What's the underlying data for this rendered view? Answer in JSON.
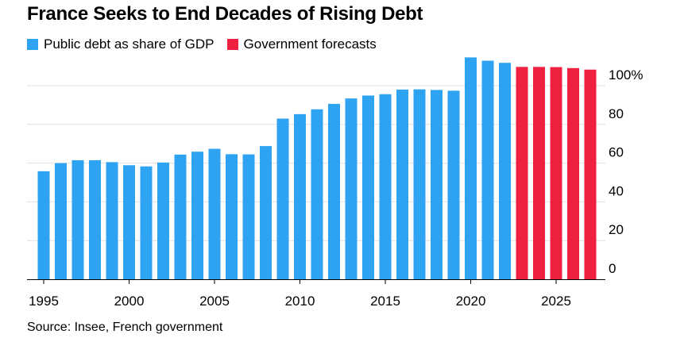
{
  "title": "France Seeks to End Decades of Rising Debt",
  "legend": [
    {
      "label": "Public debt as share of GDP",
      "color": "#2ea3f2"
    },
    {
      "label": "Government forecasts",
      "color": "#ee2240"
    }
  ],
  "source": "Source: Insee, French government",
  "chart_data": {
    "type": "bar",
    "title": "France Seeks to End Decades of Rising Debt",
    "xlabel": "",
    "ylabel": "",
    "ylim": [
      0,
      115
    ],
    "yticks": [
      0,
      20,
      40,
      60,
      80,
      100
    ],
    "ytick_labels": [
      "0",
      "20",
      "40",
      "60",
      "80",
      "100%"
    ],
    "xtick_labels": [
      "1995",
      "2000",
      "2005",
      "2010",
      "2015",
      "2020",
      "2025"
    ],
    "grid": true,
    "series": [
      {
        "name": "Public debt as share of GDP",
        "color": "#2ea3f2",
        "x": [
          1995,
          1996,
          1997,
          1998,
          1999,
          2000,
          2001,
          2002,
          2003,
          2004,
          2005,
          2006,
          2007,
          2008,
          2009,
          2010,
          2011,
          2012,
          2013,
          2014,
          2015,
          2016,
          2017,
          2018,
          2019,
          2020,
          2021,
          2022
        ],
        "values": [
          55.8,
          60.0,
          61.5,
          61.5,
          60.5,
          58.9,
          58.3,
          60.3,
          64.4,
          65.9,
          67.4,
          64.6,
          64.5,
          68.8,
          83.0,
          85.3,
          87.8,
          90.6,
          93.4,
          94.9,
          95.6,
          98.0,
          98.1,
          97.8,
          97.4,
          114.6,
          112.9,
          111.8
        ]
      },
      {
        "name": "Government forecasts",
        "color": "#ee2240",
        "x": [
          2023,
          2024,
          2025,
          2026,
          2027
        ],
        "values": [
          109.7,
          109.7,
          109.6,
          109.1,
          108.3
        ]
      }
    ]
  }
}
